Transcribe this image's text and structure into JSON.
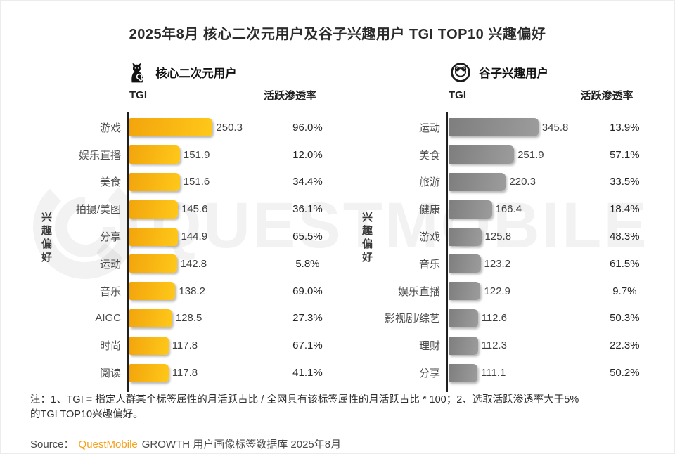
{
  "title": "2025年8月 核心二次元用户及谷子兴趣用户 TGI TOP10 兴趣偏好",
  "watermark": {
    "text": "QUESTMOBILE",
    "logo": "questmobile-swirl-logo"
  },
  "icons": {
    "left_group": "cat-icon",
    "right_group": "bear-badge-icon"
  },
  "colors": {
    "brand_orange": "#F7A01B",
    "axis": "#1F1F1F",
    "left_bar_gradient": [
      "#F2A50C",
      "#FFC81A"
    ],
    "right_bar_gradient": [
      "#7E7E7E",
      "#9C9C9C"
    ]
  },
  "chart_data": [
    {
      "type": "bar",
      "orientation": "horizontal",
      "group": "核心二次元用户",
      "ylabel": "兴趣偏好",
      "xlim": [
        0,
        260
      ],
      "grid": false,
      "categories": [
        "游戏",
        "娱乐直播",
        "美食",
        "拍摄/美图",
        "分享",
        "运动",
        "音乐",
        "AIGC",
        "时尚",
        "阅读"
      ],
      "series": [
        {
          "name": "TGI",
          "values": [
            250.3,
            151.9,
            151.6,
            145.6,
            144.9,
            142.8,
            138.2,
            128.5,
            117.8,
            117.8
          ]
        },
        {
          "name": "活跃渗透率",
          "values": [
            "96.0%",
            "12.0%",
            "34.4%",
            "36.1%",
            "65.5%",
            "5.8%",
            "69.0%",
            "27.3%",
            "67.1%",
            "41.1%"
          ]
        }
      ],
      "bar_gradient": [
        "#F2A50C",
        "#FFC81A"
      ]
    },
    {
      "type": "bar",
      "orientation": "horizontal",
      "group": "谷子兴趣用户",
      "ylabel": "兴趣偏好",
      "xlim": [
        0,
        360
      ],
      "grid": false,
      "categories": [
        "运动",
        "美食",
        "旅游",
        "健康",
        "游戏",
        "音乐",
        "娱乐直播",
        "影视剧/综艺",
        "理财",
        "分享"
      ],
      "series": [
        {
          "name": "TGI",
          "values": [
            345.8,
            251.9,
            220.3,
            166.4,
            125.8,
            123.2,
            122.9,
            112.6,
            112.3,
            111.1
          ]
        },
        {
          "name": "活跃渗透率",
          "values": [
            "13.9%",
            "57.1%",
            "33.5%",
            "18.4%",
            "48.3%",
            "61.5%",
            "9.7%",
            "50.3%",
            "22.3%",
            "50.2%"
          ]
        }
      ],
      "bar_gradient": [
        "#7E7E7E",
        "#9C9C9C"
      ]
    }
  ],
  "note_lines": [
    "注：1、TGI = 指定人群某个标签属性的月活跃占比 / 全网具有该标签属性的月活跃占比 * 100；2、选取活跃渗透率大于5%",
    "的TGI TOP10兴趣偏好。"
  ],
  "source": {
    "label": "Source：",
    "brand": "QuestMobile",
    "rest": "GROWTH 用户画像标签数据库 2025年8月"
  }
}
